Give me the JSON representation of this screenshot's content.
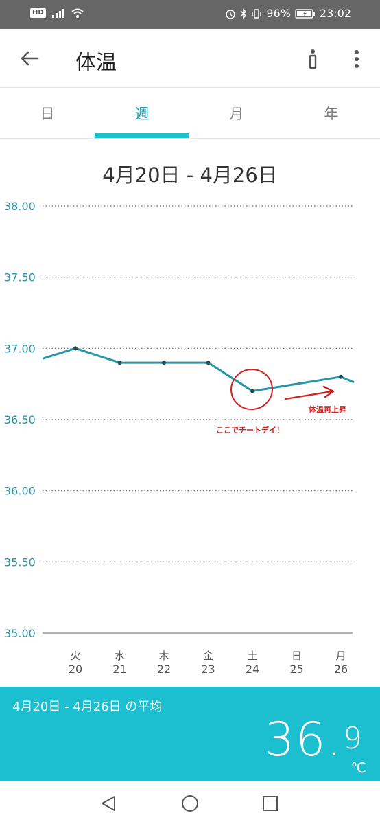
{
  "status_bar": {
    "hd_badge": "HD",
    "battery": "96%",
    "time": "23:02",
    "icons": [
      "signal-icon",
      "wifi-icon",
      "alarm-icon",
      "bluetooth-icon",
      "vibrate-icon",
      "battery-charging-icon"
    ]
  },
  "app_bar": {
    "title": "体温",
    "back_icon": "arrow-left-icon",
    "info_icon": "info-icon",
    "more_icon": "more-vertical-icon"
  },
  "tabs": [
    {
      "label": "日",
      "active": false
    },
    {
      "label": "週",
      "active": true
    },
    {
      "label": "月",
      "active": false
    },
    {
      "label": "年",
      "active": false
    }
  ],
  "date_range": "4月20日 - 4月26日",
  "chart_data": {
    "type": "line",
    "ylim": [
      35.0,
      38.0
    ],
    "y_ticks": [
      "38.00",
      "37.50",
      "37.00",
      "36.50",
      "36.00",
      "35.50",
      "35.00"
    ],
    "categories": [
      {
        "weekday": "火",
        "day": "20"
      },
      {
        "weekday": "水",
        "day": "21"
      },
      {
        "weekday": "木",
        "day": "22"
      },
      {
        "weekday": "金",
        "day": "23"
      },
      {
        "weekday": "土",
        "day": "24"
      },
      {
        "weekday": "日",
        "day": "25"
      },
      {
        "weekday": "月",
        "day": "26"
      }
    ],
    "series": [
      {
        "values": [
          37.0,
          36.9,
          36.9,
          36.9,
          36.7,
          null,
          36.8
        ],
        "color": "#2596a8"
      }
    ],
    "line_extends_past_edges": true,
    "grid": "dotted horizontal",
    "annotations": [
      {
        "text": "ここでチートデイ！",
        "color": "#d42020",
        "marks": "circle around 土 24 point"
      },
      {
        "text": "体温再上昇",
        "color": "#d42020",
        "marks": "arrow pointing right"
      }
    ]
  },
  "summary": {
    "label": "4月20日 - 4月26日 の平均",
    "value_int": "36.",
    "value_dec": "9",
    "unit": "℃"
  },
  "nav_bar": {
    "back_icon": "triangle-back-icon",
    "home_icon": "circle-home-icon",
    "recent_icon": "square-recents-icon"
  },
  "colors": {
    "accent": "#1cbfcf",
    "line": "#2596a8",
    "annotation": "#d42020"
  }
}
